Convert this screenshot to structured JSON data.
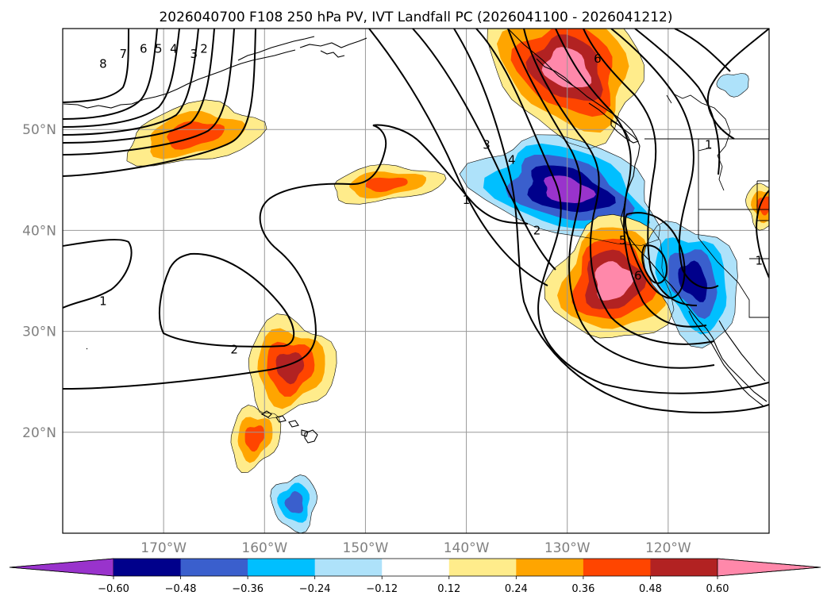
{
  "chart_data": {
    "type": "contour_map",
    "title": "2026040700 F108 250 hPa PV, IVT Landfall PC (2026041100 - 2026041212)",
    "projection": "plate-carree",
    "extent": {
      "lon_min": -180,
      "lon_max": -110,
      "lat_min": 10,
      "lat_max": 60
    },
    "x_ticks": [
      {
        "value": -170,
        "label": "170°W"
      },
      {
        "value": -160,
        "label": "160°W"
      },
      {
        "value": -150,
        "label": "150°W"
      },
      {
        "value": -140,
        "label": "140°W"
      },
      {
        "value": -130,
        "label": "130°W"
      },
      {
        "value": -120,
        "label": "120°W"
      }
    ],
    "y_ticks": [
      {
        "value": 20,
        "label": "20°N"
      },
      {
        "value": 30,
        "label": "30°N"
      },
      {
        "value": 40,
        "label": "40°N"
      },
      {
        "value": 50,
        "label": "50°N"
      }
    ],
    "colorbar": {
      "levels": [
        -0.72,
        -0.6,
        -0.48,
        -0.36,
        -0.24,
        -0.12,
        0.12,
        0.24,
        0.36,
        0.48,
        0.6,
        0.72
      ],
      "colors": [
        "#9933cc",
        "#00008b",
        "#3a5fcd",
        "#00bfff",
        "#aee2fa",
        "#ffffff",
        "#ffec8b",
        "#ffa500",
        "#ff4500",
        "#b22222",
        "#ff88aa"
      ],
      "extend_colors": {
        "min": "#9933cc",
        "max": "#ff88aa"
      },
      "tick_labels": [
        "−0.60",
        "−0.48",
        "−0.36",
        "−0.24",
        "−0.12",
        "0.12",
        "0.24",
        "0.36",
        "0.48",
        "0.60"
      ]
    },
    "filled_anomalies": [
      {
        "lon": -167,
        "lat": 49.5,
        "peak": 0.4
      },
      {
        "lon": -148,
        "lat": 44.6,
        "peak": 0.37
      },
      {
        "lon": -157.5,
        "lat": 26.5,
        "peak": 0.5
      },
      {
        "lon": -161,
        "lat": 19.5,
        "peak": 0.38
      },
      {
        "lon": -157,
        "lat": 13,
        "peak": -0.38
      },
      {
        "lon": -130,
        "lat": 56,
        "peak": 0.65
      },
      {
        "lon": -130,
        "lat": 44,
        "peak": -0.62
      },
      {
        "lon": -125.5,
        "lat": 35,
        "peak": 0.66
      },
      {
        "lon": -117.5,
        "lat": 35,
        "peak": -0.5
      },
      {
        "lon": -110.5,
        "lat": 42.5,
        "peak": 0.38
      },
      {
        "lon": -113.5,
        "lat": 54.5,
        "peak": -0.2
      }
    ],
    "pv_contour_labels": [
      {
        "text": "1",
        "lon": -176,
        "lat": 33
      },
      {
        "text": "2",
        "lon": -163,
        "lat": 28.2
      },
      {
        "text": "1",
        "lon": -140,
        "lat": 43
      },
      {
        "text": "2",
        "lon": -133,
        "lat": 40
      },
      {
        "text": "3",
        "lon": -138,
        "lat": 48.5
      },
      {
        "text": "4",
        "lon": -135.5,
        "lat": 47
      },
      {
        "text": "5",
        "lon": -124.5,
        "lat": 39
      },
      {
        "text": "6",
        "lon": -123,
        "lat": 35.5
      },
      {
        "text": "8",
        "lon": -176,
        "lat": 56.5
      },
      {
        "text": "7",
        "lon": -174,
        "lat": 57.5
      },
      {
        "text": "6",
        "lon": -172,
        "lat": 58
      },
      {
        "text": "5",
        "lon": -170.5,
        "lat": 58
      },
      {
        "text": "4",
        "lon": -169,
        "lat": 58
      },
      {
        "text": "3",
        "lon": -167,
        "lat": 57.5
      },
      {
        "text": "2",
        "lon": -166,
        "lat": 58
      },
      {
        "text": "6",
        "lon": -127,
        "lat": 57
      },
      {
        "text": "1",
        "lon": -116,
        "lat": 48.5
      },
      {
        "text": "1",
        "lon": -111,
        "lat": 37
      }
    ]
  }
}
